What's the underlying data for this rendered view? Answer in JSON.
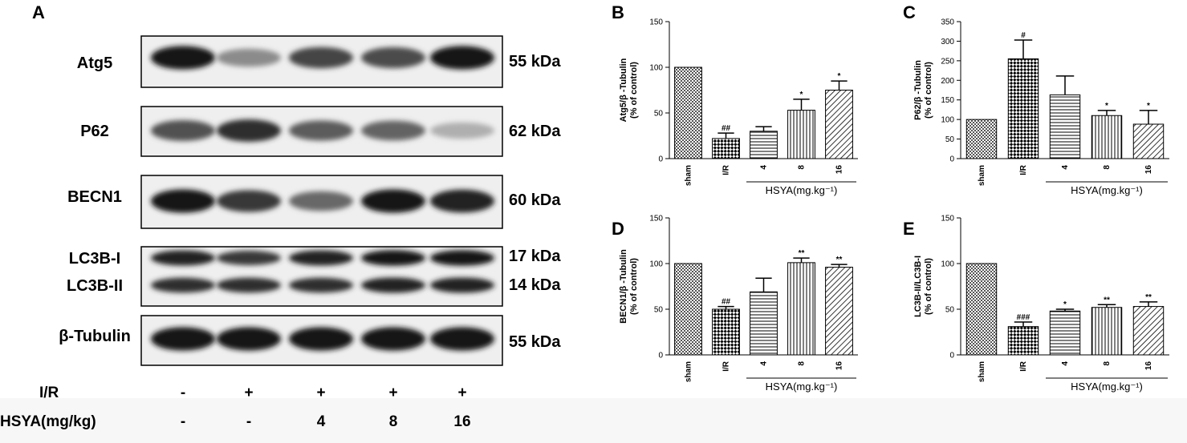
{
  "figure": {
    "panel_a": {
      "letter": "A",
      "blots": [
        {
          "protein": "Atg5",
          "mw": "55 kDa",
          "band_intensity": [
            0.95,
            0.45,
            0.75,
            0.72,
            0.95
          ]
        },
        {
          "protein": "P62",
          "mw": "62 kDa",
          "band_intensity": [
            0.7,
            0.85,
            0.65,
            0.62,
            0.3
          ]
        },
        {
          "protein": "BECN1",
          "mw": "60 kDa",
          "band_intensity": [
            0.95,
            0.8,
            0.6,
            0.95,
            0.9
          ]
        },
        {
          "protein": "LC3B-I",
          "mw": "17 kDa",
          "band_intensity": [
            0.9,
            0.8,
            0.9,
            0.95,
            0.95
          ]
        },
        {
          "protein": "LC3B-II",
          "mw": "14 kDa",
          "band_intensity": [
            0.85,
            0.85,
            0.85,
            0.9,
            0.9
          ]
        },
        {
          "protein": "β-Tubulin",
          "mw": "55 kDa",
          "band_intensity": [
            0.95,
            0.95,
            0.95,
            0.95,
            0.95
          ]
        }
      ],
      "conditions": [
        {
          "label": "I/R",
          "values": [
            "-",
            "+",
            "+",
            "+",
            "+"
          ]
        },
        {
          "label": "HSYA(mg/kg)",
          "values": [
            "-",
            "-",
            "4",
            "8",
            "16"
          ]
        }
      ]
    }
  },
  "chart_data": [
    {
      "panel": "B",
      "type": "bar",
      "ylabel_line1": "Atg5/β -Tubulin",
      "ylabel_line2": "(% of control)",
      "ylim": [
        0,
        150
      ],
      "yticks": [
        0,
        50,
        100,
        150
      ],
      "categories": [
        "sham",
        "I/R",
        "4",
        "8",
        "16"
      ],
      "values": [
        100,
        22,
        30,
        53,
        75
      ],
      "errors": [
        0,
        6,
        5,
        12,
        10
      ],
      "significance": [
        "",
        "##",
        "",
        "*",
        "*"
      ],
      "group_label": "HSYA(mg.kg⁻¹)"
    },
    {
      "panel": "C",
      "type": "bar",
      "ylabel_line1": "P62/β -Tubulin",
      "ylabel_line2": "(% of control)",
      "ylim": [
        0,
        350
      ],
      "yticks": [
        0,
        50,
        100,
        150,
        200,
        250,
        300,
        350
      ],
      "categories": [
        "sham",
        "I/R",
        "4",
        "8",
        "16"
      ],
      "values": [
        100,
        255,
        163,
        110,
        88
      ],
      "errors": [
        0,
        48,
        48,
        13,
        35
      ],
      "significance": [
        "",
        "#",
        "",
        "*",
        "*"
      ],
      "group_label": "HSYA(mg.kg⁻¹)"
    },
    {
      "panel": "D",
      "type": "bar",
      "ylabel_line1": "BECN1/β -Tubulin",
      "ylabel_line2": "(% of control)",
      "ylim": [
        0,
        150
      ],
      "yticks": [
        0,
        50,
        100,
        150
      ],
      "categories": [
        "sham",
        "I/R",
        "4",
        "8",
        "16"
      ],
      "values": [
        100,
        50,
        69,
        101,
        96
      ],
      "errors": [
        0,
        3,
        15,
        5,
        3
      ],
      "significance": [
        "",
        "##",
        "",
        "**",
        "**"
      ],
      "group_label": "HSYA(mg.kg⁻¹)"
    },
    {
      "panel": "E",
      "type": "bar",
      "ylabel_line1": "LC3B-II/LC3B-I",
      "ylabel_line2": "(% of control)",
      "ylim": [
        0,
        150
      ],
      "yticks": [
        0,
        50,
        100,
        150
      ],
      "categories": [
        "sham",
        "I/R",
        "4",
        "8",
        "16"
      ],
      "values": [
        100,
        31,
        48,
        52,
        53
      ],
      "errors": [
        0,
        5,
        2,
        3,
        5
      ],
      "significance": [
        "",
        "###",
        "*",
        "**",
        "**"
      ],
      "group_label": "HSYA(mg.kg⁻¹)"
    }
  ]
}
